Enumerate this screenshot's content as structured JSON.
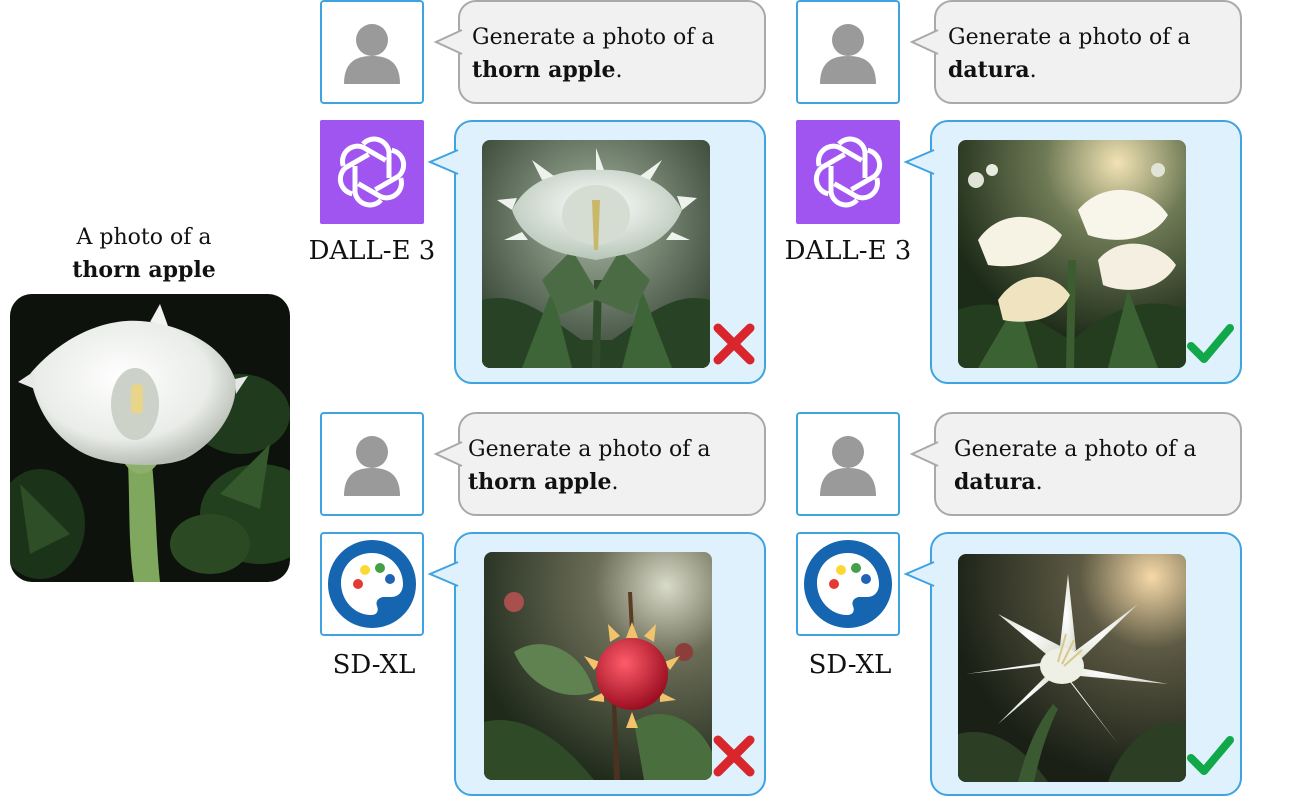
{
  "reference": {
    "caption_line1": "A photo of a",
    "caption_bold": "thorn apple",
    "photo_icon": "white-datura-flower-photo"
  },
  "panels": [
    {
      "prompt_line1": "Generate a photo of a",
      "prompt_bold": "thorn apple",
      "prompt_end": ".",
      "model": "DALL-E 3",
      "model_icon": "openai-logo",
      "result_icon": "spiky-white-flower-image",
      "verdict": "incorrect",
      "verdict_icon": "red-cross-icon"
    },
    {
      "prompt_line1": "Generate a photo of a",
      "prompt_bold": "datura",
      "prompt_end": ".",
      "model": "DALL-E 3",
      "model_icon": "openai-logo",
      "result_icon": "white-trumpet-flowers-image",
      "verdict": "correct",
      "verdict_icon": "green-check-icon"
    },
    {
      "prompt_line1": "Generate a photo of a",
      "prompt_bold": "thorn apple",
      "prompt_end": ".",
      "model": "SD-XL",
      "model_icon": "palette-logo",
      "result_icon": "red-spiky-fruit-image",
      "verdict": "incorrect",
      "verdict_icon": "red-cross-icon"
    },
    {
      "prompt_line1": "Generate a photo of a",
      "prompt_bold": "datura",
      "prompt_end": ".",
      "model": "SD-XL",
      "model_icon": "palette-logo",
      "result_icon": "white-star-flower-image",
      "verdict": "correct",
      "verdict_icon": "green-check-icon"
    }
  ],
  "colors": {
    "user_border": "#3fa3e0",
    "prompt_bg": "#f1f1f1",
    "result_bg": "#dff1fc",
    "openai_purple": "#a155f0",
    "sdxl_blue": "#1565b0",
    "cross_red": "#d8262c",
    "check_green": "#11a84a"
  }
}
